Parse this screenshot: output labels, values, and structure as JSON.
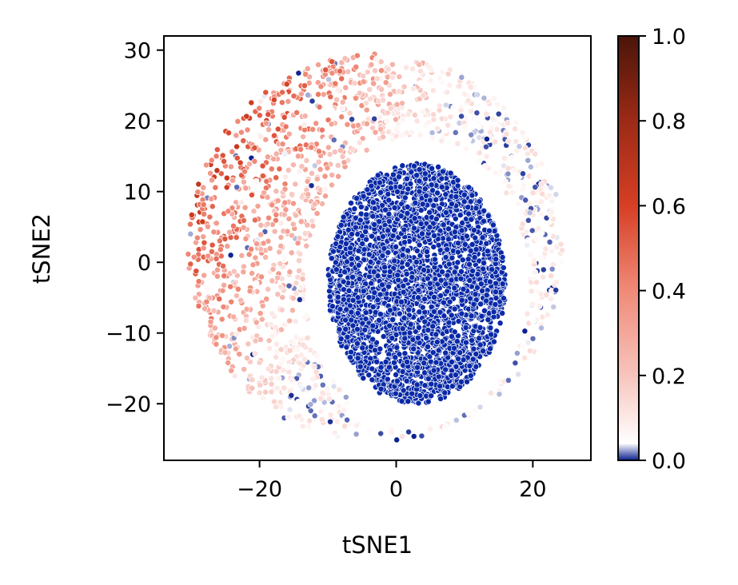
{
  "chart_data": {
    "type": "scatter",
    "xlabel": "tSNE1",
    "ylabel": "tSNE2",
    "xlim": [
      -34,
      28.5
    ],
    "ylim": [
      -28,
      32
    ],
    "xticks": [
      -20,
      0,
      20
    ],
    "xtick_labels": [
      "−20",
      "0",
      "20"
    ],
    "yticks": [
      30,
      20,
      10,
      0,
      -10,
      -20
    ],
    "ytick_labels": [
      "30",
      "20",
      "10",
      "0",
      "−10",
      "−20"
    ],
    "colorbar": {
      "range": [
        0.0,
        1.0
      ],
      "ticks": [
        0.0,
        0.2,
        0.4,
        0.6,
        0.8,
        1.0
      ],
      "tick_labels": [
        "0.0",
        "0.2",
        "0.4",
        "0.6",
        "0.8",
        "1.0"
      ],
      "colors": [
        "#0a1f8f",
        "#ffffff",
        "#f7c4bd",
        "#f08a78",
        "#d63f24",
        "#9c2a16",
        "#4a1509"
      ]
    },
    "clusters": [
      {
        "name": "",
        "center": [
          3,
          -3
        ],
        "radius": [
          13,
          17
        ],
        "value": 0.0,
        "color": "#0a2aa8"
      },
      {
        "name": "",
        "outer_center": [
          -3,
          2
        ],
        "outer_radius": 27.5,
        "value_range": [
          0.0,
          0.9
        ],
        "color_high": "#7a1a0a"
      }
    ],
    "grid": false,
    "legend": "none"
  }
}
